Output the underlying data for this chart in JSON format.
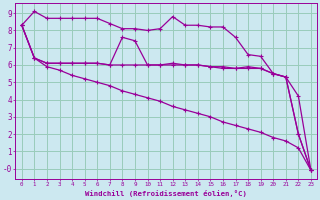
{
  "bg_color": "#cce8f0",
  "grid_color": "#99ccbb",
  "line_color": "#990099",
  "xlabel": "Windchill (Refroidissement éolien,°C)",
  "ylim": [
    -0.6,
    9.6
  ],
  "xlim": [
    -0.5,
    23.5
  ],
  "yticks": [
    0,
    1,
    2,
    3,
    4,
    5,
    6,
    7,
    8,
    9
  ],
  "ytick_labels": [
    "-0",
    "1",
    "2",
    "3",
    "4",
    "5",
    "6",
    "7",
    "8",
    "9"
  ],
  "xticks": [
    0,
    1,
    2,
    3,
    4,
    5,
    6,
    7,
    8,
    9,
    10,
    11,
    12,
    13,
    14,
    15,
    16,
    17,
    18,
    19,
    20,
    21,
    22,
    23
  ],
  "s0": [
    8.3,
    9.1,
    8.7,
    8.7,
    8.7,
    8.7,
    8.7,
    8.4,
    8.1,
    8.1,
    8.0,
    8.1,
    8.8,
    8.3,
    8.3,
    8.2,
    8.2,
    7.6,
    6.6,
    6.5,
    5.5,
    5.3,
    4.2,
    -0.1
  ],
  "s1": [
    8.3,
    6.4,
    6.1,
    6.1,
    6.1,
    6.1,
    6.1,
    6.0,
    7.6,
    7.4,
    6.0,
    6.0,
    6.1,
    6.0,
    6.0,
    5.9,
    5.8,
    5.8,
    5.9,
    5.8,
    5.5,
    5.3,
    2.0,
    -0.1
  ],
  "s2": [
    8.3,
    6.4,
    6.1,
    6.1,
    6.1,
    6.1,
    6.1,
    6.0,
    6.0,
    6.0,
    6.0,
    6.0,
    6.0,
    6.0,
    6.0,
    5.9,
    5.9,
    5.8,
    5.8,
    5.8,
    5.5,
    5.3,
    2.0,
    -0.1
  ],
  "s3": [
    8.3,
    6.4,
    5.9,
    5.7,
    5.4,
    5.2,
    5.0,
    4.8,
    4.5,
    4.3,
    4.1,
    3.9,
    3.6,
    3.4,
    3.2,
    3.0,
    2.7,
    2.5,
    2.3,
    2.1,
    1.8,
    1.6,
    1.2,
    -0.1
  ]
}
